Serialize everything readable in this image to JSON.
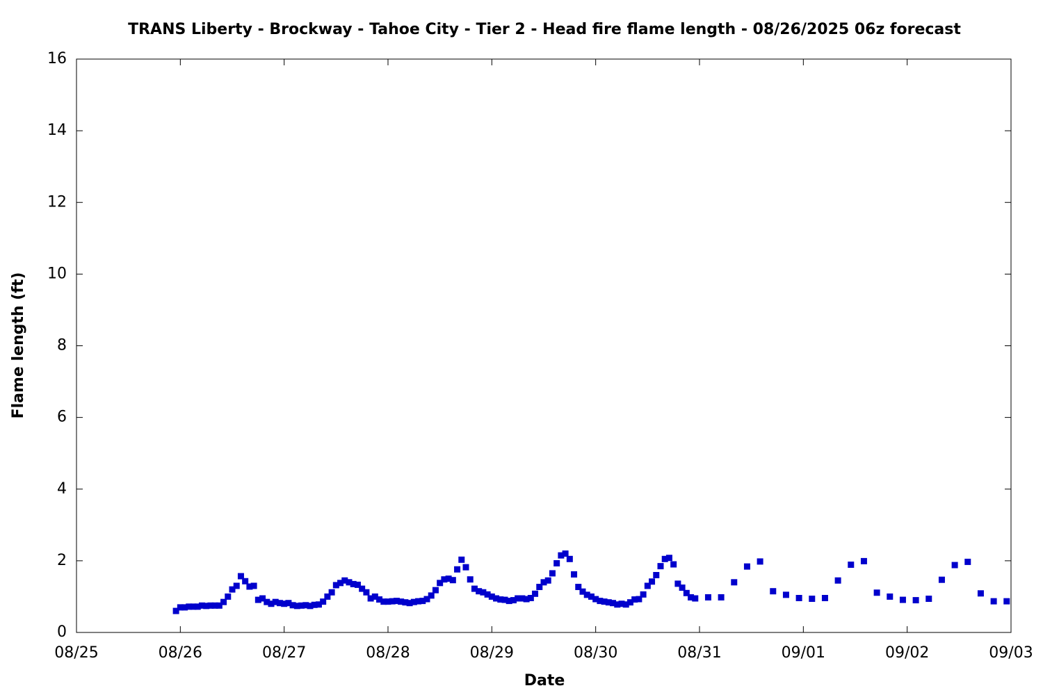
{
  "chart_data": {
    "type": "scatter",
    "title": "TRANS Liberty - Brockway - Tahoe City - Tier 2 - Head fire flame length - 08/26/2025 06z forecast",
    "x_label": "Date",
    "y_label": "Flame length (ft)",
    "xlim": [
      0,
      216
    ],
    "ylim": [
      0,
      16
    ],
    "xticks": [
      {
        "value": 0,
        "label": "08/25"
      },
      {
        "value": 24,
        "label": "08/26"
      },
      {
        "value": 48,
        "label": "08/27"
      },
      {
        "value": 72,
        "label": "08/28"
      },
      {
        "value": 96,
        "label": "08/29"
      },
      {
        "value": 120,
        "label": "08/30"
      },
      {
        "value": 144,
        "label": "08/31"
      },
      {
        "value": 168,
        "label": "09/01"
      },
      {
        "value": 192,
        "label": "09/02"
      },
      {
        "value": 216,
        "label": "09/03"
      }
    ],
    "yticks": [
      0,
      2,
      4,
      6,
      8,
      10,
      12,
      14,
      16
    ],
    "marker": "square",
    "color": "#0000cc",
    "x": [
      23,
      24,
      25,
      26,
      27,
      28,
      29,
      30,
      31,
      32,
      33,
      34,
      35,
      36,
      37,
      38,
      39,
      40,
      41,
      42,
      43,
      44,
      45,
      46,
      47,
      48,
      49,
      50,
      51,
      52,
      53,
      54,
      55,
      56,
      57,
      58,
      59,
      60,
      61,
      62,
      63,
      64,
      65,
      66,
      67,
      68,
      69,
      70,
      71,
      72,
      73,
      74,
      75,
      76,
      77,
      78,
      79,
      80,
      81,
      82,
      83,
      84,
      85,
      86,
      87,
      88,
      89,
      90,
      91,
      92,
      93,
      94,
      95,
      96,
      97,
      98,
      99,
      100,
      101,
      102,
      103,
      104,
      105,
      106,
      107,
      108,
      109,
      110,
      111,
      112,
      113,
      114,
      115,
      116,
      117,
      118,
      119,
      120,
      121,
      122,
      123,
      124,
      125,
      126,
      127,
      128,
      129,
      130,
      131,
      132,
      133,
      134,
      135,
      136,
      137,
      138,
      139,
      140,
      141,
      142,
      143,
      146,
      149,
      152,
      155,
      158,
      161,
      164,
      167,
      170,
      173,
      176,
      179,
      182,
      185,
      188,
      191,
      194,
      197,
      200,
      203,
      206,
      209,
      212,
      215
    ],
    "values": [
      0.6,
      0.7,
      0.7,
      0.72,
      0.72,
      0.72,
      0.75,
      0.74,
      0.75,
      0.75,
      0.75,
      0.85,
      1.0,
      1.2,
      1.3,
      1.57,
      1.43,
      1.28,
      1.3,
      0.91,
      0.95,
      0.85,
      0.8,
      0.85,
      0.82,
      0.8,
      0.82,
      0.76,
      0.74,
      0.75,
      0.76,
      0.74,
      0.77,
      0.78,
      0.86,
      1.0,
      1.12,
      1.32,
      1.38,
      1.45,
      1.4,
      1.35,
      1.33,
      1.22,
      1.12,
      0.95,
      1.0,
      0.92,
      0.86,
      0.86,
      0.87,
      0.88,
      0.86,
      0.84,
      0.82,
      0.85,
      0.87,
      0.88,
      0.93,
      1.03,
      1.18,
      1.38,
      1.48,
      1.5,
      1.46,
      1.76,
      2.03,
      1.82,
      1.48,
      1.22,
      1.15,
      1.12,
      1.06,
      1.0,
      0.95,
      0.92,
      0.91,
      0.88,
      0.9,
      0.95,
      0.95,
      0.93,
      0.96,
      1.08,
      1.27,
      1.4,
      1.45,
      1.65,
      1.93,
      2.15,
      2.2,
      2.05,
      1.62,
      1.27,
      1.14,
      1.05,
      1.0,
      0.93,
      0.88,
      0.86,
      0.84,
      0.82,
      0.78,
      0.8,
      0.78,
      0.84,
      0.92,
      0.93,
      1.06,
      1.3,
      1.42,
      1.6,
      1.85,
      2.05,
      2.08,
      1.9,
      1.36,
      1.25,
      1.1,
      0.98,
      0.95,
      0.98,
      0.98,
      1.4,
      1.84,
      1.98,
      1.15,
      1.05,
      0.96,
      0.94,
      0.96,
      1.45,
      1.89,
      1.99,
      1.11,
      1.0,
      0.91,
      0.9,
      0.94,
      1.47,
      1.88,
      1.97,
      1.09,
      0.87,
      0.87
    ]
  }
}
